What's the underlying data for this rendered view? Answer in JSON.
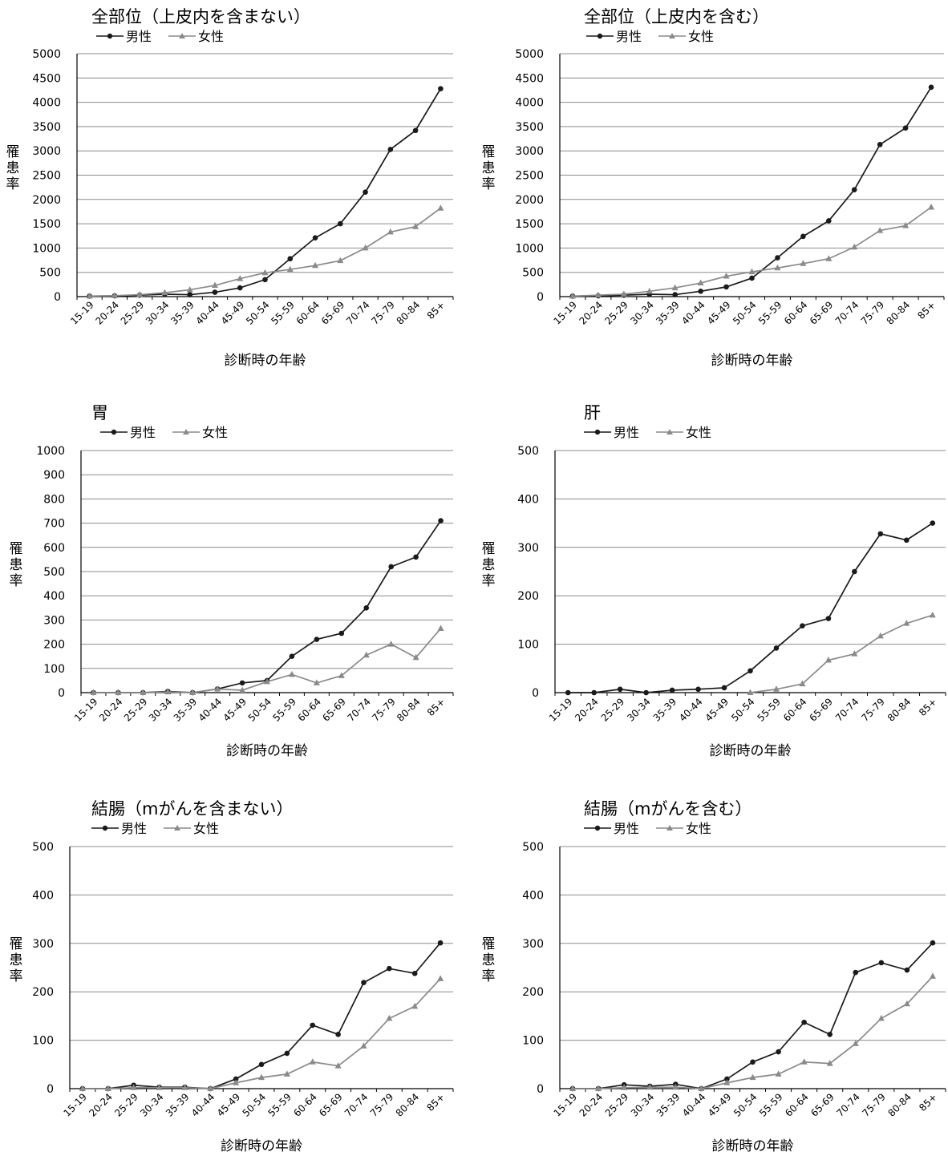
{
  "legend": {
    "male": "男性",
    "female": "女性"
  },
  "colors": {
    "male": "#1a1a1a",
    "female": "#8a8a8a",
    "grid": "#8c8c8c",
    "axis": "#000000"
  },
  "chart_data": [
    {
      "type": "line",
      "title": "全部位（上皮内を含まない）",
      "xlabel": "診断時の年齢",
      "ylabel": "罹患率",
      "categories": [
        "15-19",
        "20-24",
        "25-29",
        "30-34",
        "35-39",
        "40-44",
        "45-49",
        "50-54",
        "55-59",
        "60-64",
        "65-69",
        "70-74",
        "75-79",
        "80-84",
        "85+"
      ],
      "ylim": [
        0,
        5000
      ],
      "yticks": [
        0,
        500,
        1000,
        1500,
        2000,
        2500,
        3000,
        3500,
        4000,
        4500,
        5000
      ],
      "grid": true,
      "legend_position": "top-left",
      "series": [
        {
          "name": "男性",
          "values": [
            10,
            15,
            30,
            50,
            40,
            90,
            180,
            350,
            780,
            1210,
            1500,
            2150,
            3030,
            3420,
            4280
          ]
        },
        {
          "name": "女性",
          "values": [
            10,
            20,
            40,
            80,
            140,
            230,
            370,
            490,
            560,
            640,
            740,
            1000,
            1330,
            1440,
            1820
          ]
        }
      ]
    },
    {
      "type": "line",
      "title": "全部位（上皮内を含む）",
      "xlabel": "診断時の年齢",
      "ylabel": "罹患率",
      "categories": [
        "15-19",
        "20-24",
        "25-29",
        "30-34",
        "35-39",
        "40-44",
        "45-49",
        "50-54",
        "55-59",
        "60-64",
        "65-69",
        "70-74",
        "75-79",
        "80-84",
        "85+"
      ],
      "ylim": [
        0,
        5000
      ],
      "yticks": [
        0,
        500,
        1000,
        1500,
        2000,
        2500,
        3000,
        3500,
        4000,
        4500,
        5000
      ],
      "grid": true,
      "legend_position": "top-left",
      "series": [
        {
          "name": "男性",
          "values": [
            10,
            15,
            30,
            50,
            40,
            110,
            200,
            380,
            800,
            1240,
            1560,
            2200,
            3130,
            3470,
            4310
          ]
        },
        {
          "name": "女性",
          "values": [
            10,
            30,
            50,
            110,
            180,
            280,
            420,
            510,
            590,
            680,
            780,
            1020,
            1360,
            1460,
            1840
          ]
        }
      ]
    },
    {
      "type": "line",
      "title": "胃",
      "xlabel": "診断時の年齢",
      "ylabel": "罹患率",
      "categories": [
        "15-19",
        "20-24",
        "25-29",
        "30-34",
        "35-39",
        "40-44",
        "45-49",
        "50-54",
        "55-59",
        "60-64",
        "65-69",
        "70-74",
        "75-79",
        "80-84",
        "85+"
      ],
      "ylim": [
        0,
        1000
      ],
      "yticks": [
        0,
        100,
        200,
        300,
        400,
        500,
        600,
        700,
        800,
        900,
        1000
      ],
      "grid": true,
      "legend_position": "top-left",
      "series": [
        {
          "name": "男性",
          "values": [
            0,
            0,
            0,
            5,
            0,
            15,
            40,
            50,
            150,
            220,
            245,
            350,
            520,
            560,
            710
          ]
        },
        {
          "name": "女性",
          "values": [
            0,
            0,
            0,
            3,
            0,
            15,
            10,
            45,
            75,
            40,
            70,
            155,
            200,
            145,
            265
          ]
        }
      ]
    },
    {
      "type": "line",
      "title": "肝",
      "xlabel": "診断時の年齢",
      "ylabel": "罹患率",
      "categories": [
        "15-19",
        "20-24",
        "25-29",
        "30-34",
        "35-39",
        "40-44",
        "45-49",
        "50-54",
        "55-59",
        "60-64",
        "65-69",
        "70-74",
        "75-79",
        "80-84",
        "85+"
      ],
      "ylim": [
        0,
        500
      ],
      "yticks": [
        0,
        100,
        200,
        300,
        400,
        500
      ],
      "grid": true,
      "legend_position": "top-left",
      "series": [
        {
          "name": "男性",
          "values": [
            0,
            0,
            7,
            0,
            5,
            7,
            10,
            45,
            92,
            138,
            153,
            250,
            328,
            315,
            350
          ]
        },
        {
          "name": "女性",
          "values": [
            null,
            null,
            null,
            null,
            null,
            null,
            null,
            0,
            7,
            18,
            67,
            80,
            117,
            143,
            160
          ]
        }
      ]
    },
    {
      "type": "line",
      "title": "結腸（mがんを含まない）",
      "xlabel": "診断時の年齢",
      "ylabel": "罹患率",
      "categories": [
        "15-19",
        "20-24",
        "25-29",
        "30-34",
        "35-39",
        "40-44",
        "45-49",
        "50-54",
        "55-59",
        "60-64",
        "65-69",
        "70-74",
        "75-79",
        "80-84",
        "85+"
      ],
      "ylim": [
        0,
        500
      ],
      "yticks": [
        0,
        100,
        200,
        300,
        400,
        500
      ],
      "grid": true,
      "legend_position": "top-left",
      "series": [
        {
          "name": "男性",
          "values": [
            0,
            0,
            7,
            3,
            3,
            0,
            20,
            50,
            73,
            131,
            112,
            219,
            248,
            238,
            301
          ]
        },
        {
          "name": "女性",
          "values": [
            0,
            0,
            2,
            2,
            2,
            0,
            12,
            23,
            30,
            55,
            47,
            88,
            145,
            170,
            227
          ]
        }
      ]
    },
    {
      "type": "line",
      "title": "結腸（mがんを含む）",
      "xlabel": "診断時の年齢",
      "ylabel": "罹患率",
      "categories": [
        "15-19",
        "20-24",
        "25-29",
        "30-34",
        "35-39",
        "40-44",
        "45-49",
        "50-54",
        "55-59",
        "60-64",
        "65-69",
        "70-74",
        "75-79",
        "80-84",
        "85+"
      ],
      "ylim": [
        0,
        500
      ],
      "yticks": [
        0,
        100,
        200,
        300,
        400,
        500
      ],
      "grid": true,
      "legend_position": "top-left",
      "series": [
        {
          "name": "男性",
          "values": [
            0,
            0,
            8,
            5,
            9,
            0,
            20,
            55,
            76,
            137,
            112,
            240,
            260,
            245,
            301
          ]
        },
        {
          "name": "女性",
          "values": [
            0,
            0,
            2,
            3,
            3,
            0,
            12,
            23,
            30,
            55,
            52,
            93,
            145,
            175,
            232
          ]
        }
      ]
    }
  ]
}
